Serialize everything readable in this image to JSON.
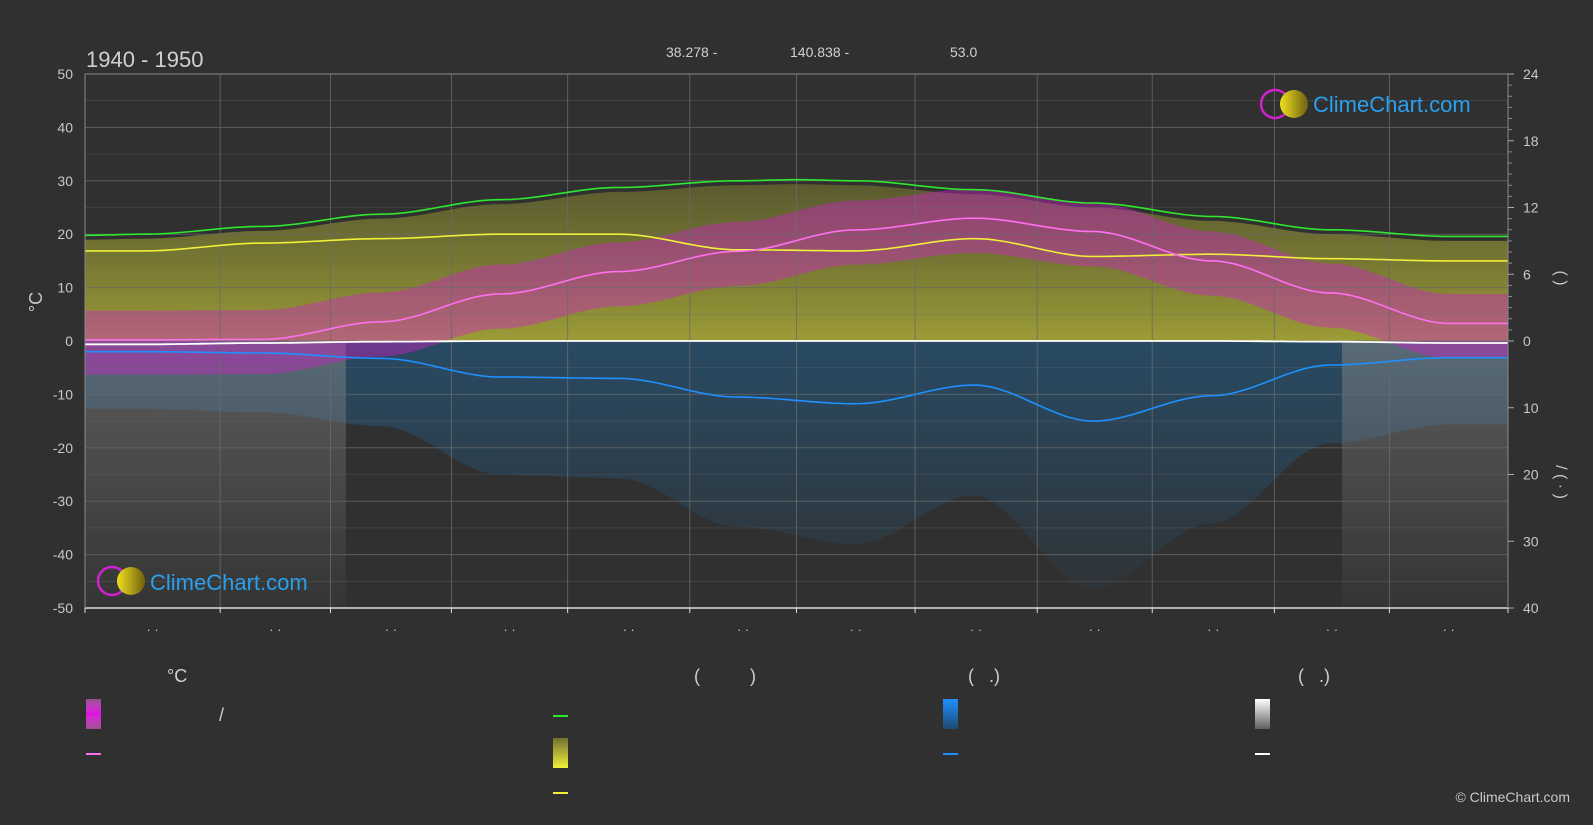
{
  "header": {
    "title": "1940 - 1950",
    "lat": "38.278 -",
    "lon": "140.838 -",
    "elev": "53.0"
  },
  "brand": {
    "name": "ClimeChart.com",
    "copyright": "© ClimeChart.com"
  },
  "legend": {
    "temp_header": "°C",
    "sun_header": "(          )",
    "rain_header": "(   .)",
    "snow_header": "(   .)",
    "temp_range_text": "/"
  },
  "colors": {
    "background": "#303030",
    "grid": "#6a6a6a",
    "text": "#c8c8c8",
    "temp_fill": "#d020c8",
    "temp_line": "#ff70f0",
    "daylight": "#2ee82e",
    "sunshine_fill": "#9a9a30",
    "sunshine_line": "#f0f03a",
    "rain_fill": "#1e5a8c",
    "rain_line": "#1e90ff",
    "snow_fill": "#707070",
    "snow_line": "#ffffff",
    "brand_blue": "#2aa0f0"
  },
  "chart_data": {
    "type": "line",
    "x_ticks": [
      "· ·",
      "· ·",
      "· ·",
      "· ·",
      "· ·",
      "· ·",
      "· ·",
      "· ·",
      "· ·",
      "· ·",
      "· ·",
      "· ·"
    ],
    "x_period": "1940 - 1950",
    "y_left": {
      "label": "°C",
      "lim": [
        -50,
        50
      ],
      "ticks": [
        50,
        40,
        30,
        20,
        10,
        0,
        -10,
        -20,
        -30,
        -40,
        -50
      ]
    },
    "y_right_top": {
      "label": "(          )",
      "lim": [
        0,
        24
      ],
      "ticks": [
        24,
        18,
        12,
        6,
        0
      ]
    },
    "y_right_bottom": {
      "label": "/     (  ·  )",
      "lim": [
        0,
        40
      ],
      "ticks": [
        0,
        10,
        20,
        30,
        40
      ]
    },
    "grid": true,
    "series": [
      {
        "key": "daylight",
        "axis": "hours",
        "points": [
          [
            0,
            9.5
          ],
          [
            0.5,
            9.6
          ],
          [
            1.5,
            10.3
          ],
          [
            2.5,
            11.4
          ],
          [
            3.5,
            12.7
          ],
          [
            4.5,
            13.8
          ],
          [
            5.5,
            14.4
          ],
          [
            6,
            14.5
          ],
          [
            6.5,
            14.4
          ],
          [
            7.5,
            13.6
          ],
          [
            8.5,
            12.4
          ],
          [
            9.5,
            11.2
          ],
          [
            10.5,
            10.0
          ],
          [
            11.5,
            9.4
          ],
          [
            12,
            9.4
          ]
        ]
      },
      {
        "key": "sunshine_hours",
        "axis": "hours",
        "points": [
          [
            0,
            8.1
          ],
          [
            0.5,
            8.1
          ],
          [
            1.5,
            8.8
          ],
          [
            2.5,
            9.2
          ],
          [
            3.5,
            9.6
          ],
          [
            4.5,
            9.6
          ],
          [
            5.5,
            8.2
          ],
          [
            6.5,
            8.1
          ],
          [
            7.5,
            9.2
          ],
          [
            8.5,
            7.6
          ],
          [
            9.5,
            7.8
          ],
          [
            10.5,
            7.4
          ],
          [
            11.5,
            7.2
          ],
          [
            12,
            7.2
          ]
        ]
      },
      {
        "key": "temp_mean",
        "axis": "temp",
        "points": [
          [
            0,
            0.2
          ],
          [
            0.5,
            0.2
          ],
          [
            1.5,
            0.3
          ],
          [
            2.5,
            3.6
          ],
          [
            3.5,
            8.8
          ],
          [
            4.5,
            13.0
          ],
          [
            5.5,
            16.8
          ],
          [
            6.5,
            20.8
          ],
          [
            7.5,
            23.0
          ],
          [
            8.5,
            20.5
          ],
          [
            9.5,
            15.0
          ],
          [
            10.5,
            9.0
          ],
          [
            11.5,
            3.3
          ],
          [
            12,
            3.3
          ]
        ]
      },
      {
        "key": "rain_mm",
        "axis": "mm",
        "points": [
          [
            0,
            1.6
          ],
          [
            0.5,
            1.6
          ],
          [
            1.5,
            1.8
          ],
          [
            2.5,
            2.6
          ],
          [
            3.5,
            5.4
          ],
          [
            4.5,
            5.6
          ],
          [
            5.5,
            8.4
          ],
          [
            6.5,
            9.4
          ],
          [
            7.5,
            6.6
          ],
          [
            8.5,
            12.0
          ],
          [
            9.5,
            8.2
          ],
          [
            10.5,
            3.6
          ],
          [
            11.5,
            2.5
          ],
          [
            12,
            2.5
          ]
        ]
      },
      {
        "key": "snow_mm",
        "axis": "mm",
        "points": [
          [
            0,
            0.5
          ],
          [
            0.5,
            0.5
          ],
          [
            1.5,
            0.3
          ],
          [
            2.5,
            0.1
          ],
          [
            3.5,
            0
          ],
          [
            4.5,
            0
          ],
          [
            5.5,
            0
          ],
          [
            6.5,
            0
          ],
          [
            7.5,
            0
          ],
          [
            8.5,
            0
          ],
          [
            9.5,
            0
          ],
          [
            10.5,
            0.1
          ],
          [
            11.5,
            0.3
          ],
          [
            12,
            0.3
          ]
        ]
      }
    ]
  }
}
